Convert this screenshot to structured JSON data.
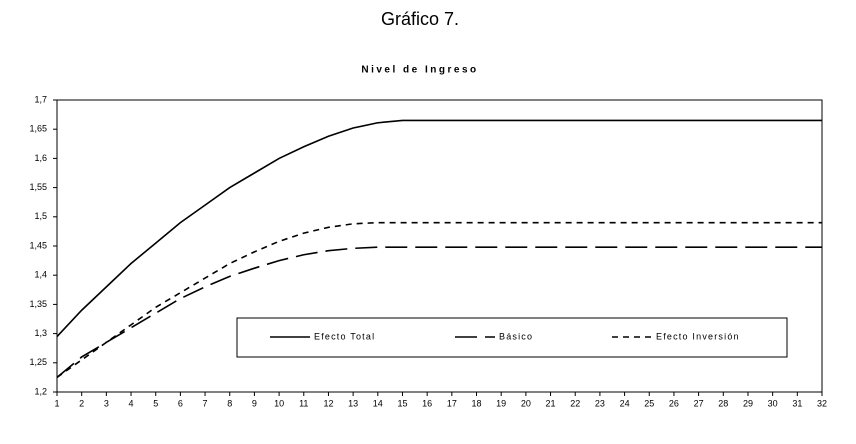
{
  "chart_data": {
    "type": "line",
    "figure_title": "Gráfico 7.",
    "title": "Nivel de Ingreso",
    "categories": [
      "1",
      "2",
      "3",
      "4",
      "5",
      "6",
      "7",
      "8",
      "9",
      "10",
      "11",
      "12",
      "13",
      "14",
      "15",
      "16",
      "17",
      "18",
      "19",
      "20",
      "21",
      "22",
      "23",
      "24",
      "25",
      "26",
      "27",
      "28",
      "29",
      "30",
      "31",
      "32"
    ],
    "series": [
      {
        "name": "Efecto Total",
        "color": "#000000",
        "style": "solid",
        "values": [
          1.295,
          1.34,
          1.38,
          1.42,
          1.455,
          1.49,
          1.52,
          1.55,
          1.575,
          1.6,
          1.62,
          1.638,
          1.652,
          1.661,
          1.665,
          1.665,
          1.665,
          1.665,
          1.665,
          1.665,
          1.665,
          1.665,
          1.665,
          1.665,
          1.665,
          1.665,
          1.665,
          1.665,
          1.665,
          1.665,
          1.665,
          1.665
        ]
      },
      {
        "name": "Básico",
        "color": "#000000",
        "style": "long-dash",
        "values": [
          1.225,
          1.26,
          1.285,
          1.31,
          1.335,
          1.36,
          1.38,
          1.398,
          1.412,
          1.425,
          1.435,
          1.442,
          1.446,
          1.448,
          1.448,
          1.448,
          1.448,
          1.448,
          1.448,
          1.448,
          1.448,
          1.448,
          1.448,
          1.448,
          1.448,
          1.448,
          1.448,
          1.448,
          1.448,
          1.448,
          1.448,
          1.448
        ]
      },
      {
        "name": "Efecto Inversión",
        "color": "#000000",
        "style": "short-dash",
        "values": [
          1.225,
          1.255,
          1.285,
          1.315,
          1.345,
          1.37,
          1.395,
          1.42,
          1.44,
          1.458,
          1.472,
          1.482,
          1.488,
          1.49,
          1.49,
          1.49,
          1.49,
          1.49,
          1.49,
          1.49,
          1.49,
          1.49,
          1.49,
          1.49,
          1.49,
          1.49,
          1.49,
          1.49,
          1.49,
          1.49,
          1.49,
          1.49
        ]
      }
    ],
    "ylim": [
      1.2,
      1.7
    ],
    "yticks": [
      {
        "value": 1.2,
        "label": "1,2"
      },
      {
        "value": 1.25,
        "label": "1,25"
      },
      {
        "value": 1.3,
        "label": "1,3"
      },
      {
        "value": 1.35,
        "label": "1,35"
      },
      {
        "value": 1.4,
        "label": "1,4"
      },
      {
        "value": 1.45,
        "label": "1,45"
      },
      {
        "value": 1.5,
        "label": "1,5"
      },
      {
        "value": 1.55,
        "label": "1,55"
      },
      {
        "value": 1.6,
        "label": "1,6"
      },
      {
        "value": 1.65,
        "label": "1,65"
      },
      {
        "value": 1.7,
        "label": "1,7"
      }
    ],
    "grid": false
  }
}
